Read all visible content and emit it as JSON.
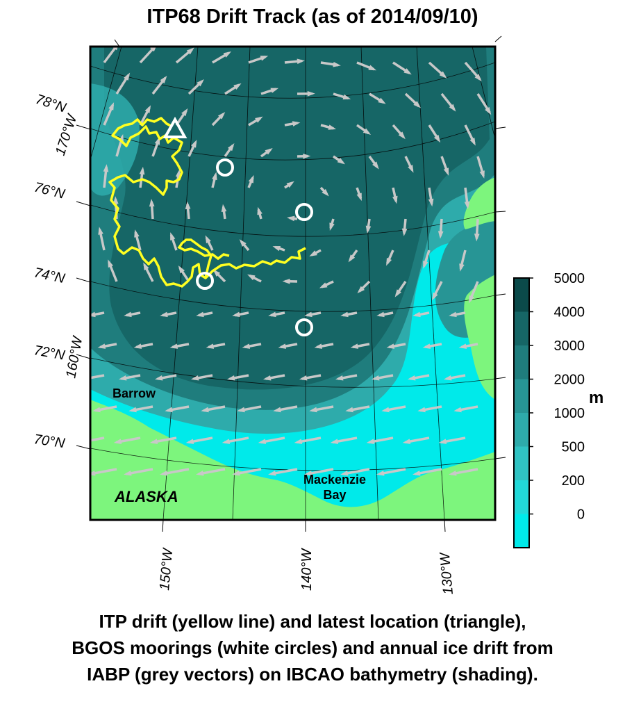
{
  "title": "ITP68 Drift Track (as of 2014/09/10)",
  "latitude_labels": [
    "78°N",
    "76°N",
    "74°N",
    "72°N",
    "70°N"
  ],
  "longitude_labels_top": [
    "170°W",
    "160°W"
  ],
  "longitude_labels_bottom": [
    "150°W",
    "140°W",
    "130°W"
  ],
  "place_labels": {
    "barrow": "Barrow",
    "alaska": "ALASKA",
    "mackenzie_line1": "Mackenzie",
    "mackenzie_line2": "Bay"
  },
  "colorbar": {
    "unit": "m",
    "ticks": [
      "5000",
      "4000",
      "3000",
      "2000",
      "1000",
      "500",
      "200",
      "0"
    ],
    "colors": [
      "#0b4a4a",
      "#166666",
      "#1f7d7d",
      "#279595",
      "#2eabab",
      "#30c3c3",
      "#22d9d9",
      "#00eaea"
    ]
  },
  "colors": {
    "land": "#7df57d",
    "track": "#ffff22",
    "moorings": "#ffffff",
    "vectors": "#c8c8c8"
  },
  "caption": [
    "ITP drift (yellow line) and latest location (triangle),",
    "BGOS moorings (white circles) and annual ice drift from",
    "IABP (grey vectors) on IBCAO bathymetry (shading)."
  ]
}
